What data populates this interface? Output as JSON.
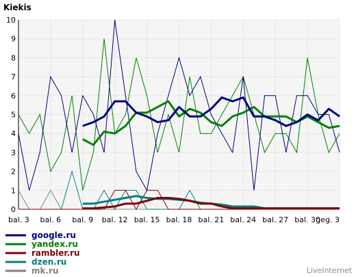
{
  "brand": "LiveInternet",
  "chart_data": {
    "type": "line",
    "title": "Kiekis",
    "xlabel": "",
    "ylabel": "",
    "x_tick_labels": [
      "bal. 3",
      "bal. 6",
      "bal. 9",
      "bal. 12",
      "bal. 15",
      "bal. 18",
      "bal. 21",
      "bal. 24",
      "bal. 27",
      "bal. 30",
      "geg. 3"
    ],
    "x_tick_days": [
      0,
      3,
      6,
      9,
      12,
      15,
      18,
      21,
      24,
      27,
      30
    ],
    "y_ticks": [
      0,
      1,
      2,
      3,
      4,
      5,
      6,
      7,
      8,
      9,
      10
    ],
    "xlim": [
      0,
      30
    ],
    "ylim": [
      0,
      10
    ],
    "grid": true,
    "legend_position": "bottom-left",
    "series": [
      {
        "name": "google.ru",
        "color": "#000080",
        "daily_days": [
          0,
          1,
          2,
          3,
          4,
          5,
          6,
          7,
          8,
          9,
          10,
          11,
          12,
          13,
          14,
          15,
          16,
          17,
          18,
          19,
          20,
          21,
          22,
          23,
          24,
          25,
          26,
          27,
          28,
          29,
          30
        ],
        "daily": [
          4,
          1,
          3,
          7,
          6,
          3,
          6,
          5,
          3,
          10,
          6,
          2,
          1,
          4,
          6,
          8,
          6,
          7,
          5,
          4,
          3,
          7,
          1,
          6,
          6,
          3,
          6,
          6,
          5,
          5,
          3
        ],
        "avg_days": [
          6,
          7,
          8,
          9,
          10,
          11,
          12,
          13,
          14,
          15,
          16,
          17,
          18,
          19,
          20,
          21,
          22,
          23,
          24,
          25,
          26,
          27,
          28,
          29,
          30
        ],
        "avg": [
          4.4,
          4.6,
          4.9,
          5.7,
          5.7,
          5.1,
          4.9,
          4.6,
          4.7,
          5.4,
          4.9,
          4.9,
          5.3,
          5.9,
          5.7,
          5.9,
          4.9,
          4.9,
          4.7,
          4.4,
          4.6,
          5.0,
          4.7,
          5.3,
          4.9
        ]
      },
      {
        "name": "yandex.ru",
        "color": "#008000",
        "daily_days": [
          0,
          1,
          2,
          3,
          4,
          5,
          6,
          7,
          8,
          9,
          10,
          11,
          12,
          13,
          14,
          15,
          16,
          17,
          18,
          19,
          20,
          21,
          22,
          23,
          24,
          25,
          26,
          27,
          28,
          29,
          30
        ],
        "daily": [
          5,
          4,
          5,
          2,
          3,
          6,
          1,
          3,
          9,
          4,
          5,
          8,
          6,
          3,
          5,
          3,
          7,
          4,
          4,
          5,
          6,
          7,
          5,
          3,
          4,
          4,
          3,
          8,
          5,
          3,
          4
        ],
        "avg_days": [
          6,
          7,
          8,
          9,
          10,
          11,
          12,
          13,
          14,
          15,
          16,
          17,
          18,
          19,
          20,
          21,
          22,
          23,
          24,
          25,
          26,
          27,
          28,
          29,
          30
        ],
        "avg": [
          3.7,
          3.4,
          4.1,
          4.0,
          4.4,
          5.1,
          5.1,
          5.4,
          5.7,
          4.9,
          5.3,
          5.1,
          4.6,
          4.4,
          4.9,
          5.1,
          5.4,
          4.9,
          4.9,
          4.9,
          4.6,
          4.9,
          4.6,
          4.3,
          4.4
        ]
      },
      {
        "name": "rambler.ru",
        "color": "#800000",
        "daily_days": [
          0,
          1,
          2,
          3,
          4,
          5,
          6,
          7,
          8,
          9,
          10,
          11,
          12,
          13,
          14,
          15,
          16,
          17,
          18,
          19,
          20,
          21,
          22,
          23,
          24,
          25,
          26,
          27,
          28,
          29,
          30
        ],
        "daily": [
          0,
          0,
          0,
          0,
          0,
          0,
          0,
          0,
          0,
          1,
          1,
          0,
          1,
          1,
          0,
          0,
          0,
          0,
          0,
          0,
          0,
          0,
          0,
          0,
          0,
          0,
          0,
          0,
          0,
          0,
          0
        ],
        "avg_days": [
          6,
          7,
          8,
          9,
          10,
          11,
          12,
          13,
          14,
          15,
          16,
          17,
          18,
          19,
          20,
          21,
          22,
          23,
          24,
          25,
          26,
          27,
          28,
          29,
          30
        ],
        "avg": [
          0.05,
          0.05,
          0.1,
          0.15,
          0.3,
          0.3,
          0.45,
          0.6,
          0.6,
          0.55,
          0.45,
          0.3,
          0.3,
          0.15,
          0.05,
          0.05,
          0.05,
          0.05,
          0.05,
          0.05,
          0.05,
          0.05,
          0.05,
          0.05,
          0.05
        ]
      },
      {
        "name": "dzen.ru",
        "color": "#008080",
        "daily_days": [
          0,
          1,
          2,
          3,
          4,
          5,
          6,
          7,
          8,
          9,
          10,
          11,
          12,
          13,
          14,
          15,
          16,
          17,
          18,
          19,
          20,
          21,
          22,
          23,
          24,
          25,
          26,
          27,
          28,
          29,
          30
        ],
        "daily": [
          0,
          0,
          0,
          0,
          0,
          2,
          0,
          0,
          1,
          0,
          1,
          1,
          0,
          0,
          0,
          0,
          1,
          0,
          0,
          0,
          0,
          0,
          0,
          0,
          0,
          0,
          0,
          0,
          0,
          0,
          0
        ],
        "avg_days": [
          6,
          7,
          8,
          9,
          10,
          11,
          12,
          13,
          14,
          15,
          16,
          17,
          18,
          19,
          20,
          21,
          22,
          23,
          24,
          25,
          26,
          27,
          28,
          29,
          30
        ],
        "avg": [
          0.3,
          0.3,
          0.4,
          0.5,
          0.6,
          0.7,
          0.6,
          0.55,
          0.55,
          0.5,
          0.45,
          0.35,
          0.3,
          0.25,
          0.15,
          0.15,
          0.15,
          0.05,
          0.05,
          0.05,
          0.05,
          0.05,
          0.05,
          0.05,
          0.05
        ]
      },
      {
        "name": "mk.ru",
        "color": "#808080",
        "daily_days": [
          0,
          1,
          2,
          3,
          4,
          5,
          6,
          7,
          8,
          9,
          10,
          11,
          12,
          13,
          14,
          15,
          16,
          17,
          18,
          19,
          20,
          21,
          22,
          23,
          24,
          25,
          26,
          27,
          28,
          29,
          30
        ],
        "daily": [
          1,
          0,
          0,
          1,
          0,
          0,
          0,
          0,
          0,
          0,
          0,
          0,
          0,
          0,
          0,
          0,
          0,
          0,
          0,
          0,
          0,
          0,
          0,
          0,
          0,
          0,
          0,
          0,
          0,
          0,
          0
        ],
        "avg_days": [],
        "avg": []
      }
    ]
  }
}
